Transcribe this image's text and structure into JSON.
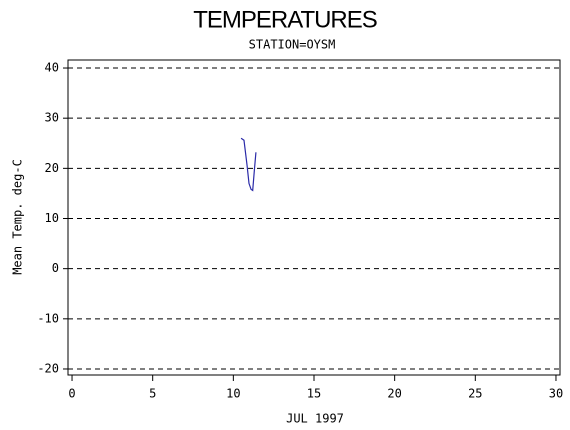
{
  "chart_data": {
    "type": "line",
    "title": "TEMPERATURES",
    "subtitle": "STATION=OYSM",
    "x_label": "JUL 1997",
    "y_label": "Mean Temp. deg-C",
    "x": [
      10.48,
      10.66,
      10.85,
      10.97,
      11.1,
      11.2,
      11.3,
      11.4
    ],
    "series": [
      {
        "color": "#2a2aa8",
        "values": [
          26.0,
          25.6,
          20.6,
          17.0,
          15.8,
          15.6,
          19.5,
          23.2
        ]
      }
    ],
    "xlim": [
      -0.25,
      30.25
    ],
    "xticks": [
      0,
      5,
      10,
      15,
      20,
      25,
      30
    ],
    "ylim": [
      -21.2,
      41.6
    ],
    "yticks": [
      -20,
      -10,
      0,
      10,
      20,
      30,
      40
    ],
    "grid": true
  }
}
